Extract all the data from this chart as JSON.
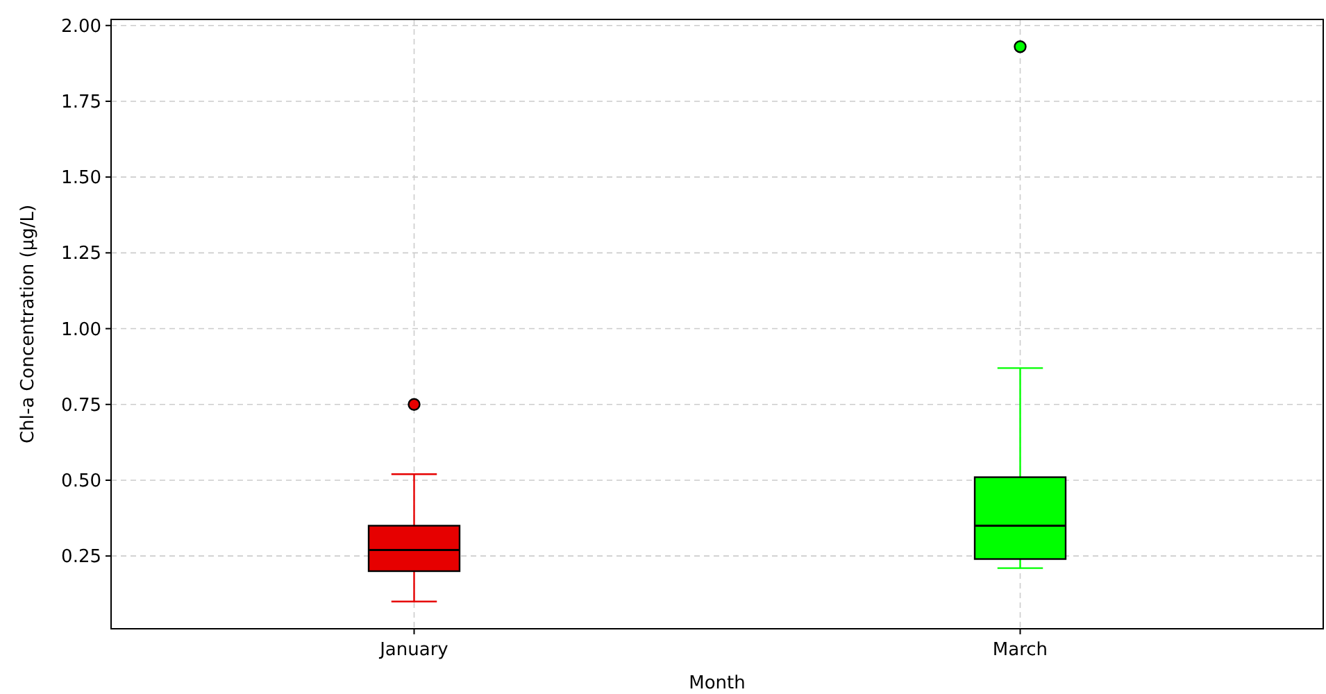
{
  "chart_data": {
    "type": "box",
    "xlabel": "Month",
    "ylabel": "Chl-a Concentration (µg/L)",
    "categories": [
      "January",
      "March"
    ],
    "colors": [
      "#e60000",
      "#00ff00"
    ],
    "boxes": [
      {
        "low": 0.1,
        "q1": 0.2,
        "median": 0.27,
        "q3": 0.35,
        "high": 0.52,
        "outliers": [
          0.75
        ]
      },
      {
        "low": 0.21,
        "q1": 0.24,
        "median": 0.35,
        "q3": 0.51,
        "high": 0.87,
        "outliers": [
          1.93
        ]
      }
    ],
    "ylim": [
      0.01,
      2.02
    ],
    "yticks": [
      {
        "value": 0.25,
        "label": "0.25"
      },
      {
        "value": 0.5,
        "label": "0.50"
      },
      {
        "value": 0.75,
        "label": "0.75"
      },
      {
        "value": 1.0,
        "label": "1.00"
      },
      {
        "value": 1.25,
        "label": "1.25"
      },
      {
        "value": 1.5,
        "label": "1.50"
      },
      {
        "value": 1.75,
        "label": "1.75"
      },
      {
        "value": 2.0,
        "label": "2.00"
      }
    ],
    "grid": true
  }
}
